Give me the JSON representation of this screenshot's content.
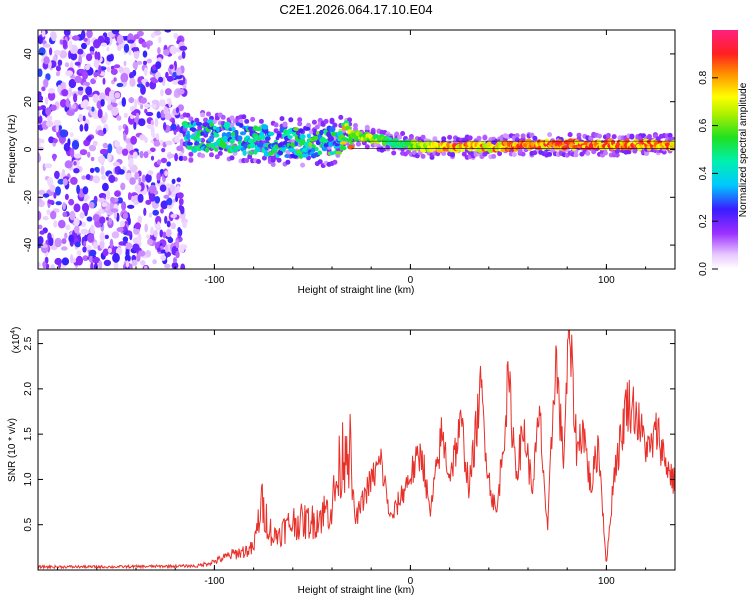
{
  "title": "C2E1.2026.064.17.10.E04",
  "colors": {
    "snr_line": "#e8302a",
    "axis": "#000000",
    "background": "#ffffff"
  },
  "chart_data": [
    {
      "type": "heatmap",
      "name": "spectrogram",
      "xlabel": "Height of straight line (km)",
      "ylabel": "Frequency (Hz)",
      "xlim": [
        -190,
        135
      ],
      "ylim": [
        -50,
        50
      ],
      "xticks": [
        -100,
        0,
        100
      ],
      "xtick_labels": [
        "-100",
        "0",
        "100"
      ],
      "yticks": [
        -40,
        -20,
        0,
        20,
        40
      ],
      "ytick_labels": [
        "-40",
        "-20",
        "0",
        "20",
        "40"
      ],
      "noise_region_x": [
        -190,
        -115
      ],
      "signal_trace": {
        "x": [
          -115,
          -100,
          -80,
          -60,
          -40,
          -30,
          -20,
          -10,
          0,
          10,
          20,
          40,
          60,
          80,
          100,
          135
        ],
        "frequency": [
          5,
          6,
          4,
          3,
          3,
          6,
          5,
          3,
          2,
          1,
          1,
          1,
          2,
          2,
          2,
          2
        ],
        "amplitude": [
          0.35,
          0.35,
          0.35,
          0.4,
          0.45,
          0.7,
          0.7,
          0.55,
          0.6,
          0.75,
          0.85,
          0.85,
          0.9,
          0.9,
          0.9,
          0.9
        ]
      },
      "colorbar": {
        "label": "Normalized spectral amplitude",
        "range": [
          0,
          1
        ],
        "ticks": [
          0.0,
          0.2,
          0.4,
          0.6,
          0.8
        ],
        "tick_labels": [
          "0.0",
          "0.2",
          "0.4",
          "0.6",
          "0.8"
        ]
      }
    },
    {
      "type": "line",
      "name": "snr",
      "xlabel": "Height of straight line (km)",
      "ylabel": "SNR (10 * v/v)",
      "y_multiplier": "(x10",
      "y_multiplier_exp": "4",
      "y_multiplier_close": ")",
      "xlim": [
        -190,
        135
      ],
      "ylim": [
        0,
        2.65
      ],
      "xticks": [
        -100,
        0,
        100
      ],
      "xtick_labels": [
        "-100",
        "0",
        "100"
      ],
      "yticks": [
        0.5,
        1.0,
        1.5,
        2.0,
        2.5
      ],
      "ytick_labels": [
        "0.5",
        "1.0",
        "1.5",
        "2.0",
        "2.5"
      ],
      "series": [
        {
          "name": "SNR",
          "x": [
            -190,
            -150,
            -110,
            -100,
            -90,
            -80,
            -76,
            -70,
            -60,
            -50,
            -40,
            -32,
            -28,
            -22,
            -15,
            -10,
            -4,
            0,
            6,
            10,
            16,
            20,
            26,
            30,
            36,
            40,
            44,
            50,
            54,
            58,
            62,
            66,
            70,
            74,
            78,
            81,
            85,
            88,
            92,
            96,
            100,
            104,
            108,
            110,
            114,
            118,
            122,
            126,
            130,
            135
          ],
          "values": [
            0.02,
            0.02,
            0.03,
            0.08,
            0.15,
            0.2,
            0.62,
            0.3,
            0.45,
            0.45,
            0.6,
            1.3,
            0.55,
            0.9,
            1.2,
            0.55,
            0.85,
            1.05,
            1.3,
            0.6,
            1.5,
            1.05,
            1.6,
            0.9,
            2.0,
            1.0,
            0.6,
            2.08,
            1.1,
            1.55,
            0.9,
            1.7,
            0.4,
            2.4,
            1.2,
            2.65,
            1.3,
            1.6,
            0.9,
            1.4,
            0.05,
            1.1,
            1.5,
            1.85,
            1.8,
            1.5,
            1.3,
            1.55,
            1.2,
            0.95
          ]
        }
      ]
    }
  ]
}
